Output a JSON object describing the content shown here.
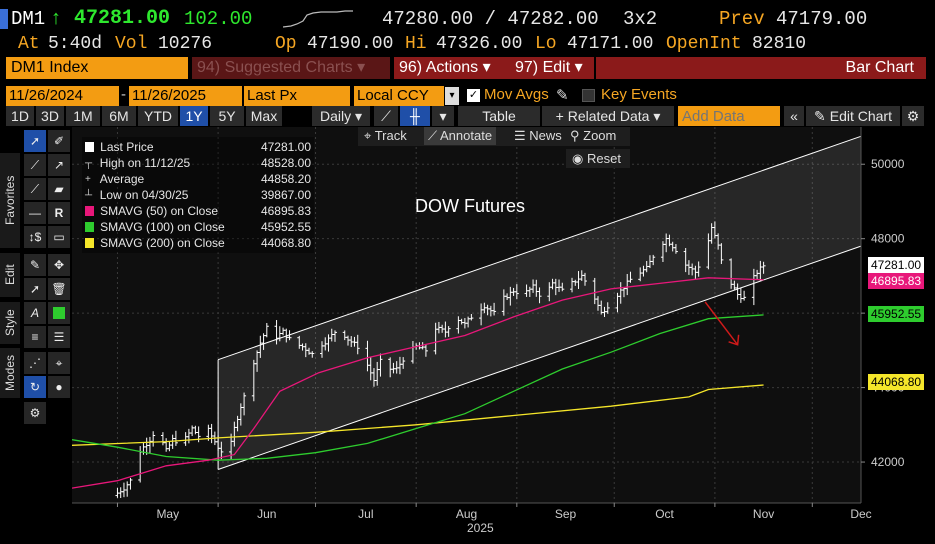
{
  "header": {
    "ticker": "DM1",
    "arrow": "↑",
    "last": "47281.00",
    "change": "102.00",
    "bid_ask": "47280.00 / 47282.00",
    "size": "3x2",
    "prev_label": "Prev",
    "prev": "47179.00",
    "at_label": "At",
    "time": "5:40d",
    "vol_label": "Vol",
    "vol": "10276",
    "op_label": "Op",
    "op": "47190.00",
    "hi_label": "Hi",
    "hi": "47326.00",
    "lo_label": "Lo",
    "lo": "47171.00",
    "oi_label": "OpenInt",
    "oi": "82810"
  },
  "command_bar": {
    "security": "DM1 Index",
    "suggested": "94) Suggested Charts ▾",
    "actions": "96) Actions ▾",
    "edit": "97) Edit ▾",
    "chart_type": "Bar Chart"
  },
  "settings_bar": {
    "start_date": "11/26/2024",
    "end_date": "11/26/2025",
    "field": "Last Px",
    "currency": "Local CCY",
    "mov_avgs": "Mov Avgs",
    "key_events": "Key Events"
  },
  "period_bar": {
    "periods": [
      "1D",
      "3D",
      "1M",
      "6M",
      "YTD",
      "1Y",
      "5Y",
      "Max"
    ],
    "active": "1Y",
    "frequency": "Daily ▾",
    "table": "Table",
    "related": "+ Related Data ▾",
    "add_data_placeholder": "Add Data",
    "edit_chart": "Edit Chart"
  },
  "chart_toolbar": {
    "track": "Track",
    "annotate": "Annotate",
    "news": "News",
    "zoom": "Zoom",
    "reset": "Reset"
  },
  "side_tabs": {
    "favorites": "Favorites",
    "edit": "Edit",
    "style": "Style",
    "modes": "Modes"
  },
  "legend": [
    {
      "label": "Last Price",
      "value": "47281.00",
      "color": "#ffffff"
    },
    {
      "label": "High on 11/12/25",
      "value": "48528.00",
      "color": ""
    },
    {
      "label": "Average",
      "value": "44858.20",
      "color": ""
    },
    {
      "label": "Low on 04/30/25",
      "value": "39867.00",
      "color": ""
    },
    {
      "label": "SMAVG (50)  on Close",
      "value": "46895.83",
      "color": "#e8177a"
    },
    {
      "label": "SMAVG (100)  on Close",
      "value": "45952.55",
      "color": "#2ecc2e"
    },
    {
      "label": "SMAVG (200)  on Close",
      "value": "44068.80",
      "color": "#f5e62a"
    }
  ],
  "annotation_text": "DOW Futures",
  "price_tags": {
    "last": "47281.00",
    "sma50": "46895.83",
    "sma100": "45952.55",
    "sma200": "44068.80"
  },
  "chart_data": {
    "type": "bar",
    "title": "DOW Futures",
    "xlabel": "2025",
    "ylabel": "",
    "ylim": [
      40900,
      51000
    ],
    "y_ticks": [
      42000,
      44000,
      46000,
      48000,
      50000
    ],
    "x_ticks": [
      "May",
      "Jun",
      "Jul",
      "Aug",
      "Sep",
      "Oct",
      "Nov",
      "Dec"
    ],
    "x_tick_days": [
      0,
      31,
      61,
      92,
      123,
      153,
      184,
      214
    ],
    "x_range_days": [
      -14,
      229
    ],
    "colors": {
      "sma50": "#e8177a",
      "sma100": "#2ecc2e",
      "sma200": "#f5e62a",
      "bars": "#ffffff",
      "channel": "#ffffff",
      "arrow": "#d01a1a"
    },
    "close_anchors": [
      [
        -1,
        41100
      ],
      [
        2,
        41300
      ],
      [
        5,
        41600
      ],
      [
        7,
        42300
      ],
      [
        10,
        42600
      ],
      [
        12,
        42900
      ],
      [
        15,
        42300
      ],
      [
        17,
        42600
      ],
      [
        20,
        42500
      ],
      [
        23,
        42900
      ],
      [
        25,
        42700
      ],
      [
        27,
        43000
      ],
      [
        29,
        42700
      ],
      [
        31,
        42400
      ],
      [
        33,
        42200
      ],
      [
        35,
        42500
      ],
      [
        36,
        42900
      ],
      [
        38,
        43500
      ],
      [
        40,
        44000
      ],
      [
        42,
        44700
      ],
      [
        44,
        45200
      ],
      [
        46,
        45600
      ],
      [
        48,
        45300
      ],
      [
        51,
        45500
      ],
      [
        54,
        45200
      ],
      [
        57,
        45100
      ],
      [
        60,
        44900
      ],
      [
        62,
        45100
      ],
      [
        65,
        45300
      ],
      [
        68,
        45600
      ],
      [
        71,
        45300
      ],
      [
        74,
        45100
      ],
      [
        77,
        44600
      ],
      [
        79,
        44200
      ],
      [
        81,
        44700
      ],
      [
        83,
        44500
      ],
      [
        86,
        44500
      ],
      [
        89,
        44900
      ],
      [
        92,
        45100
      ],
      [
        95,
        45000
      ],
      [
        98,
        45600
      ],
      [
        101,
        45500
      ],
      [
        104,
        45900
      ],
      [
        107,
        45700
      ],
      [
        110,
        46000
      ],
      [
        113,
        46200
      ],
      [
        116,
        46000
      ],
      [
        119,
        46400
      ],
      [
        122,
        46600
      ],
      [
        125,
        46500
      ],
      [
        128,
        46700
      ],
      [
        131,
        46400
      ],
      [
        134,
        46800
      ],
      [
        137,
        46600
      ],
      [
        140,
        46800
      ],
      [
        143,
        47000
      ],
      [
        146,
        46600
      ],
      [
        149,
        46000
      ],
      [
        152,
        46300
      ],
      [
        155,
        46600
      ],
      [
        158,
        46900
      ],
      [
        161,
        47100
      ],
      [
        163,
        47200
      ],
      [
        166,
        47700
      ],
      [
        169,
        48000
      ],
      [
        172,
        47700
      ],
      [
        175,
        47300
      ],
      [
        178,
        47100
      ],
      [
        181,
        47600
      ],
      [
        183,
        48300
      ],
      [
        185,
        47800
      ],
      [
        187,
        47000
      ],
      [
        189,
        46800
      ],
      [
        191,
        46500
      ],
      [
        193,
        46400
      ],
      [
        195,
        46800
      ],
      [
        197,
        47100
      ],
      [
        199,
        47281
      ]
    ],
    "sma50": [
      [
        -14,
        41300
      ],
      [
        0,
        41500
      ],
      [
        15,
        41900
      ],
      [
        28,
        42050
      ],
      [
        36,
        42200
      ],
      [
        42,
        42900
      ],
      [
        50,
        43900
      ],
      [
        62,
        44400
      ],
      [
        77,
        44800
      ],
      [
        92,
        45100
      ],
      [
        107,
        45400
      ],
      [
        122,
        45900
      ],
      [
        137,
        46350
      ],
      [
        152,
        46650
      ],
      [
        167,
        46800
      ],
      [
        182,
        46950
      ],
      [
        199,
        46896
      ]
    ],
    "sma100": [
      [
        -14,
        42600
      ],
      [
        0,
        42400
      ],
      [
        15,
        42150
      ],
      [
        31,
        42050
      ],
      [
        46,
        42100
      ],
      [
        61,
        42250
      ],
      [
        77,
        42500
      ],
      [
        92,
        42900
      ],
      [
        107,
        43300
      ],
      [
        122,
        43900
      ],
      [
        137,
        44500
      ],
      [
        152,
        44950
      ],
      [
        167,
        45450
      ],
      [
        182,
        45850
      ],
      [
        199,
        45953
      ]
    ],
    "sma200": [
      [
        -14,
        42450
      ],
      [
        15,
        42550
      ],
      [
        31,
        42650
      ],
      [
        61,
        42800
      ],
      [
        92,
        43000
      ],
      [
        122,
        43250
      ],
      [
        152,
        43500
      ],
      [
        176,
        43750
      ],
      [
        182,
        43950
      ],
      [
        199,
        44069
      ]
    ],
    "channel_upper": [
      [
        31,
        44750
      ],
      [
        229,
        50750
      ]
    ],
    "channel_lower": [
      [
        31,
        41800
      ],
      [
        229,
        47800
      ]
    ],
    "arrow": [
      [
        181,
        46300
      ],
      [
        191,
        45150
      ]
    ]
  }
}
